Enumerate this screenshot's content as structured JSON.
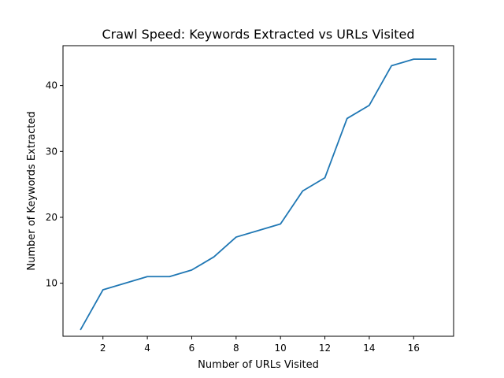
{
  "chart_data": {
    "type": "line",
    "title": "Crawl Speed: Keywords Extracted vs URLs Visited",
    "xlabel": "Number of URLs Visited",
    "ylabel": "Number of Keywords Extracted",
    "xlim": [
      0.2,
      17.8
    ],
    "ylim": [
      1.95,
      46.05
    ],
    "xticks": [
      2,
      4,
      6,
      8,
      10,
      12,
      14,
      16
    ],
    "yticks": [
      10,
      20,
      30,
      40
    ],
    "grid": false,
    "series": [
      {
        "color": "#1f77b4",
        "x": [
          1,
          2,
          3,
          4,
          5,
          6,
          7,
          8,
          9,
          10,
          11,
          12,
          13,
          14,
          15,
          16,
          17
        ],
        "y": [
          3,
          9,
          10,
          11,
          11,
          12,
          14,
          17,
          18,
          19,
          24,
          26,
          35,
          37,
          43,
          44,
          44
        ]
      }
    ]
  }
}
